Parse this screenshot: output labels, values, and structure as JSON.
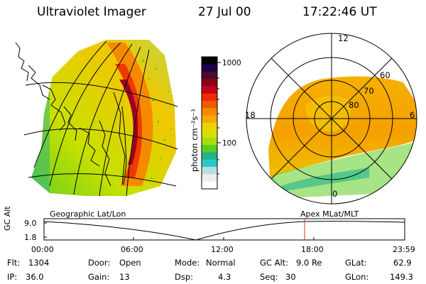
{
  "header": {
    "title": "Ultraviolet Imager",
    "date": "27 Jul 00",
    "time": "17:22:46 UT"
  },
  "colorbar": {
    "unit_label": "photon cm⁻²s⁻¹",
    "ticks": [
      "1000",
      "100"
    ],
    "colors": [
      "#000000",
      "#1c0048",
      "#4b0a30",
      "#8b0014",
      "#c8001c",
      "#ee2b00",
      "#f05a00",
      "#f58a00",
      "#f5aa00",
      "#eed000",
      "#d8e000",
      "#a8dc10",
      "#5ccd20",
      "#21b48a",
      "#2bc8c8",
      "#b8dede",
      "#eeeeee",
      "#ffffff"
    ]
  },
  "polar_plot": {
    "mlt_labels": [
      "12",
      "18",
      "6",
      "0"
    ],
    "mlat_labels": [
      "60",
      "70",
      "80"
    ]
  },
  "timeline": {
    "left_label": "Geographic Lat/Lon",
    "right_label": "Apex MLat/MLT",
    "yaxis_label": "GC Alt",
    "y_ticks": [
      "9.0",
      "1.8"
    ],
    "x_ticks": [
      "00:00",
      "06:00",
      "12:00",
      "18:00",
      "23:59"
    ],
    "marker_color": "#c0392b"
  },
  "info": {
    "flt_label": "Flt:",
    "flt_value": "1304",
    "ip_label": "IP:",
    "ip_value": "36.0",
    "door_label": "Door:",
    "door_value": "Open",
    "gain_label": "Gain:",
    "gain_value": "13",
    "mode_label": "Mode:",
    "mode_value": "Normal",
    "dsp_label": "Dsp:",
    "dsp_value": "4.3",
    "gcalt_label": "GC Alt:",
    "gcalt_value": "9.0 Re",
    "seq_label": "Seq:",
    "seq_value": "30",
    "glat_label": "GLat:",
    "glat_value": "62.9",
    "glon_label": "GLon:",
    "glon_value": "149.3"
  }
}
